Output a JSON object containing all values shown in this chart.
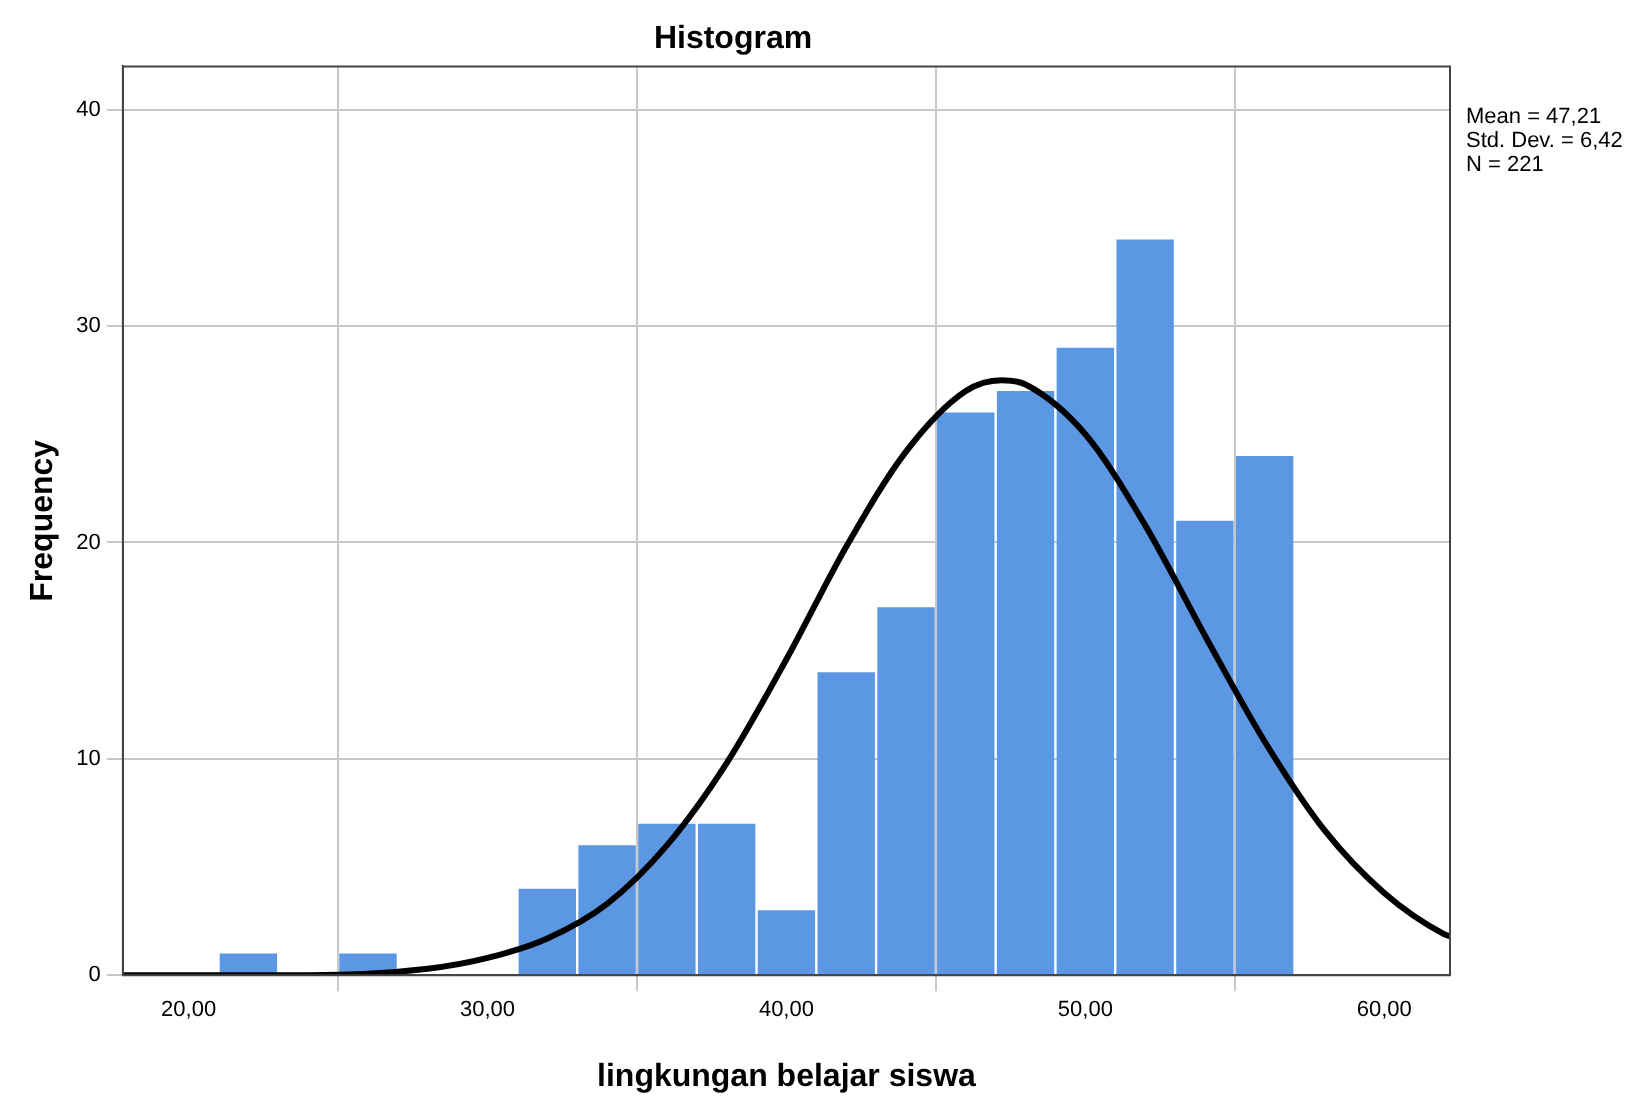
{
  "chart_data": {
    "type": "histogram",
    "title": "Histogram",
    "xlabel": "lingkungan belajar siswa",
    "ylabel": "Frequency",
    "bins": [
      21,
      23,
      25,
      27,
      29,
      31,
      33,
      35,
      37,
      39,
      41,
      43,
      45,
      47,
      49,
      51,
      53,
      55,
      57
    ],
    "values": [
      1,
      0,
      1,
      0,
      0,
      4,
      6,
      7,
      7,
      3,
      14,
      17,
      26,
      27,
      29,
      34,
      21,
      24
    ],
    "color": "#5b97e3",
    "series": [
      {
        "type": "line",
        "color": "#000000",
        "x": [
          17.8,
          20,
          24,
          28,
          30,
          32,
          34,
          36,
          38,
          40,
          42,
          44,
          46,
          47.2,
          48,
          50,
          52,
          54,
          56,
          58,
          60,
          62,
          62.2
        ],
        "values": [
          0,
          0,
          0,
          0.3,
          0.8,
          1.7,
          3.3,
          6,
          9.8,
          14.6,
          19.8,
          24.2,
          27,
          27.5,
          27.3,
          25,
          20.8,
          15.7,
          10.8,
          6.7,
          3.8,
          1.9,
          1.8
        ]
      }
    ],
    "xlim": [
      17.8,
      62.2
    ],
    "xticks": [
      {
        "value": 20,
        "label": "20,00"
      },
      {
        "value": 30,
        "label": "30,00"
      },
      {
        "value": 40,
        "label": "40,00"
      },
      {
        "value": 50,
        "label": "50,00"
      },
      {
        "value": 60,
        "label": "60,00"
      }
    ],
    "ylim": [
      0,
      42
    ],
    "yticks": [
      0,
      10,
      20,
      30,
      40
    ],
    "grid": true,
    "legend": false,
    "marker": "none",
    "annotations": [
      "Mean = 47,21",
      "Std. Dev. = 6,42",
      "N = 221"
    ]
  }
}
